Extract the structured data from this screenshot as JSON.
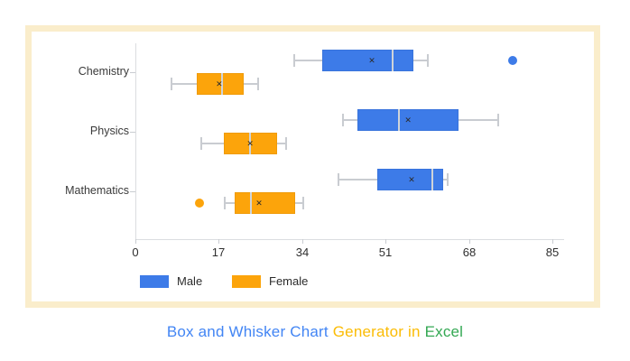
{
  "card": {
    "border_color": "#FAEDCB",
    "background": "#FFFFFF"
  },
  "chart_data": {
    "type": "box",
    "orientation": "horizontal",
    "grid": false,
    "categories": [
      "Chemistry",
      "Physics",
      "Mathematics"
    ],
    "x_axis": {
      "min": 0,
      "max": 85,
      "ticks": [
        0,
        17,
        34,
        51,
        68,
        85
      ]
    },
    "mean_marker": "✕",
    "legend_position": "bottom-left",
    "series": [
      {
        "name": "Male",
        "color": "#3D7BE8",
        "boxes": [
          {
            "category": "Chemistry",
            "min": 32.4,
            "q1": 38.1,
            "median": 52.4,
            "q3": 56.7,
            "max": 59.6,
            "mean": 48.2,
            "outliers": [
              76.9
            ]
          },
          {
            "category": "Physics",
            "min": 42.3,
            "q1": 45.3,
            "median": 53.7,
            "q3": 65.9,
            "max": 74.0,
            "mean": 55.6,
            "outliers": []
          },
          {
            "category": "Mathematics",
            "min": 41.4,
            "q1": 49.3,
            "median": 60.5,
            "q3": 62.7,
            "max": 63.7,
            "mean": 56.3,
            "outliers": []
          }
        ]
      },
      {
        "name": "Female",
        "color": "#FCA40B",
        "boxes": [
          {
            "category": "Chemistry",
            "min": 7.4,
            "q1": 12.5,
            "median": 17.6,
            "q3": 22.0,
            "max": 25.0,
            "mean": 17.1,
            "outliers": []
          },
          {
            "category": "Physics",
            "min": 13.4,
            "q1": 18.0,
            "median": 23.4,
            "q3": 28.9,
            "max": 30.7,
            "mean": 23.4,
            "outliers": []
          },
          {
            "category": "Mathematics",
            "min": 18.2,
            "q1": 20.2,
            "median": 23.5,
            "q3": 32.6,
            "max": 34.2,
            "mean": 25.2,
            "outliers": [
              13.1
            ]
          }
        ]
      }
    ]
  },
  "legend": {
    "items": [
      {
        "label": "Male",
        "color": "#3D7BE8"
      },
      {
        "label": "Female",
        "color": "#FCA40B"
      }
    ]
  },
  "caption": {
    "segments": [
      {
        "text": "Box and Whisker Chart ",
        "color": "#4285F4"
      },
      {
        "text": "Generator in ",
        "color": "#FBBC05"
      },
      {
        "text": "Excel",
        "color": "#34A853"
      }
    ]
  }
}
